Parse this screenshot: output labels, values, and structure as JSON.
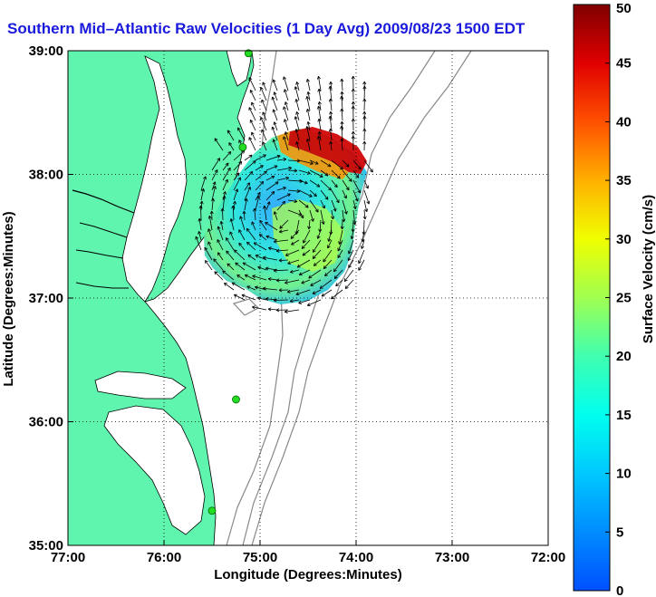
{
  "title": "Southern Mid–Atlantic Raw Velocities (1 Day Avg) 2009/08/23 1500 EDT",
  "axes": {
    "xlabel": "Longitude (Degrees:Minutes)",
    "ylabel": "Latitude (Degrees:Minutes)",
    "x_ticks": [
      "77:00",
      "76:00",
      "75:00",
      "74:00",
      "73:00",
      "72:00"
    ],
    "y_ticks": [
      "39:00",
      "38:00",
      "37:00",
      "36:00",
      "35:00"
    ],
    "xlim": [
      -77,
      -72
    ],
    "ylim": [
      35,
      39
    ],
    "grid": "dotted"
  },
  "colorbar": {
    "label": "Surface Velocity (cm/s)",
    "ticks": [
      "0",
      "5",
      "10",
      "15",
      "20",
      "25",
      "30",
      "35",
      "40",
      "45",
      "50"
    ],
    "range": [
      0,
      50
    ]
  },
  "colors": {
    "land": "#5ff5ae",
    "water": "#ffffff",
    "title": "#1a1adc",
    "bathymetry": "#888888",
    "station": "#22dd22"
  },
  "stations_lonlat": [
    [
      -75.12,
      38.98
    ],
    [
      -75.18,
      38.22
    ],
    [
      -75.25,
      36.18
    ],
    [
      -75.5,
      35.28
    ]
  ]
}
